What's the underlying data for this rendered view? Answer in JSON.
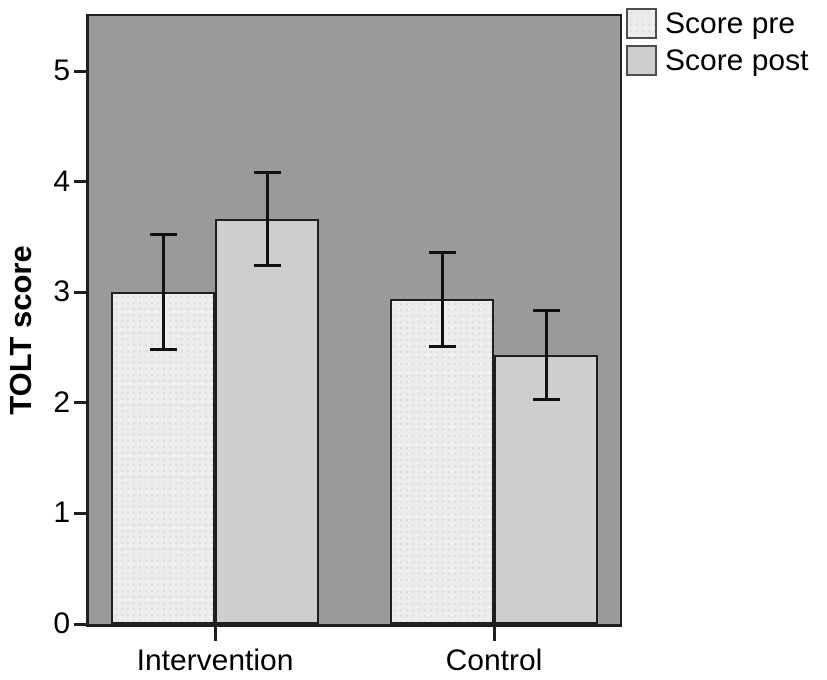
{
  "chart_data": {
    "type": "bar",
    "title": "",
    "ylabel": "TOLT score",
    "xlabel": "",
    "categories": [
      "Intervention",
      "Control"
    ],
    "series": [
      {
        "name": "Score pre",
        "values": [
          3.0,
          2.94
        ],
        "error_low": [
          2.48,
          2.51
        ],
        "error_high": [
          3.52,
          3.36
        ],
        "fill": "#ececec",
        "texture": "speckled"
      },
      {
        "name": "Score post",
        "values": [
          3.66,
          2.43
        ],
        "error_low": [
          3.24,
          2.03
        ],
        "error_high": [
          4.08,
          2.84
        ],
        "fill": "#cecece",
        "texture": "flat"
      }
    ],
    "ylim": [
      0,
      5.5
    ],
    "yticks": [
      0,
      1,
      2,
      3,
      4,
      5
    ],
    "grid": false,
    "legend_position": "top-right-outside",
    "error_bars": "capped"
  },
  "colors": {
    "figure_background": "#ffffff",
    "plot_background": "#9a9a9a",
    "bar_border": "#1f1f1f",
    "error_bar": "#111111",
    "axis_frame": "#1f1f1f",
    "text": "#000000",
    "legend_swatch_border": "#4d4d4d"
  }
}
